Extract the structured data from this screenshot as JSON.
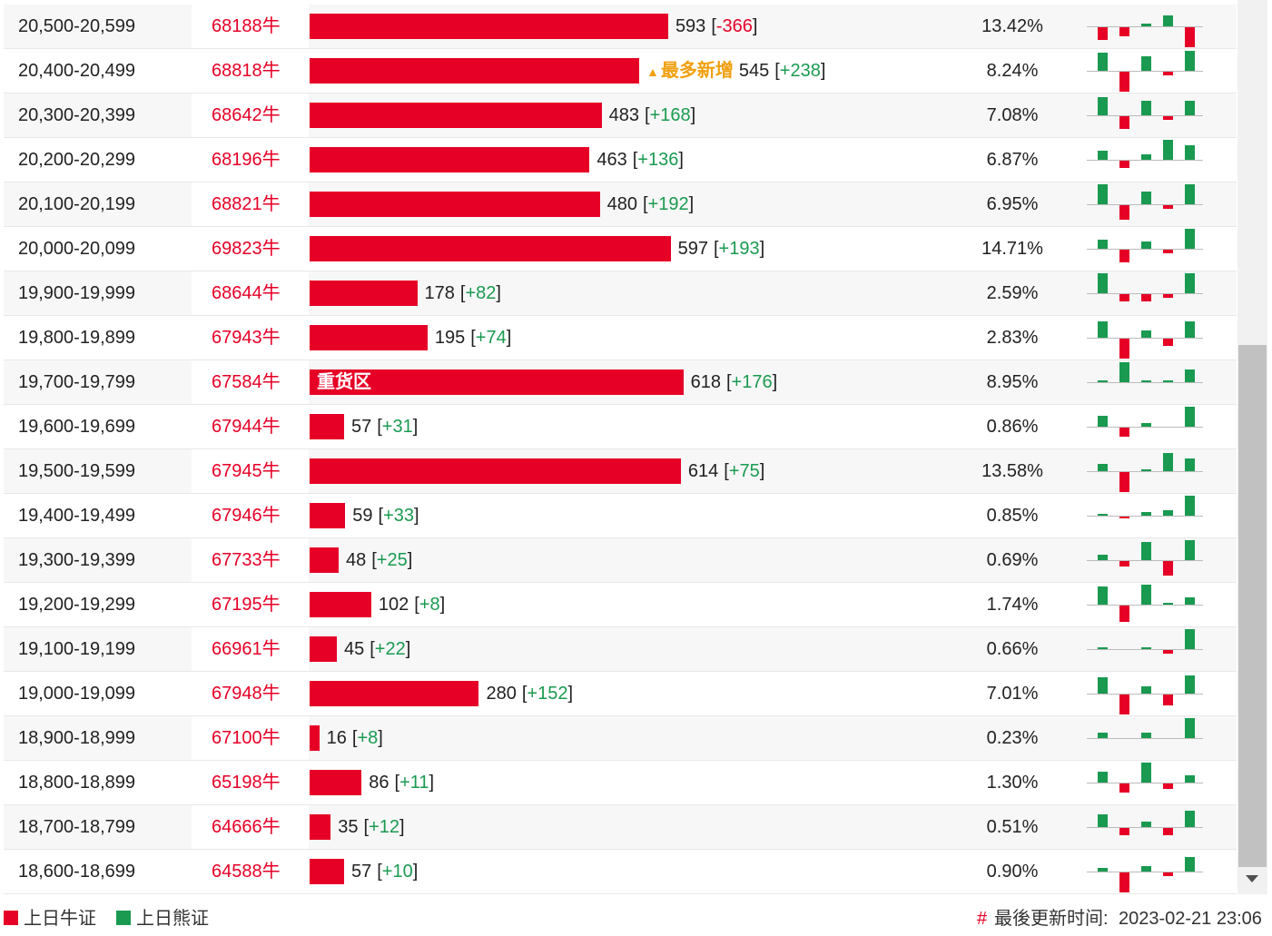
{
  "table": {
    "bracket_open": "[",
    "bracket_close": "]",
    "bar_color": "#e60026",
    "up_color": "#1a9a50",
    "down_color": "#e60026",
    "rows": [
      {
        "range": "20,500-20,599",
        "code": "68188牛",
        "count": 593,
        "change": "-366",
        "pct": "13.42%",
        "trend": [
          -14,
          -10,
          3,
          12,
          -22
        ]
      },
      {
        "range": "20,400-20,499",
        "code": "68818牛",
        "count": 545,
        "change": "+238",
        "pct": "8.24%",
        "note": "最多新增",
        "trend": [
          20,
          -22,
          16,
          -4,
          22
        ]
      },
      {
        "range": "20,300-20,399",
        "code": "68642牛",
        "count": 483,
        "change": "+168",
        "pct": "7.08%",
        "trend": [
          20,
          -14,
          16,
          -4,
          16
        ]
      },
      {
        "range": "20,200-20,299",
        "code": "68196牛",
        "count": 463,
        "change": "+136",
        "pct": "6.87%",
        "trend": [
          10,
          -8,
          6,
          22,
          16
        ]
      },
      {
        "range": "20,100-20,199",
        "code": "68821牛",
        "count": 480,
        "change": "+192",
        "pct": "6.95%",
        "trend": [
          22,
          -16,
          14,
          -4,
          22
        ]
      },
      {
        "range": "20,000-20,099",
        "code": "69823牛",
        "count": 597,
        "change": "+193",
        "pct": "14.71%",
        "trend": [
          10,
          -14,
          8,
          -4,
          22
        ]
      },
      {
        "range": "19,900-19,999",
        "code": "68644牛",
        "count": 178,
        "change": "+82",
        "pct": "2.59%",
        "trend": [
          22,
          -8,
          -8,
          -4,
          22
        ]
      },
      {
        "range": "19,800-19,899",
        "code": "67943牛",
        "count": 195,
        "change": "+74",
        "pct": "2.83%",
        "trend": [
          18,
          -22,
          8,
          -8,
          18
        ]
      },
      {
        "range": "19,700-19,799",
        "code": "67584牛",
        "count": 618,
        "change": "+176",
        "pct": "8.95%",
        "tag": "重货区",
        "trend": [
          2,
          22,
          2,
          2,
          14
        ]
      },
      {
        "range": "19,600-19,699",
        "code": "67944牛",
        "count": 57,
        "change": "+31",
        "pct": "0.86%",
        "trend": [
          12,
          -10,
          4,
          0,
          22
        ]
      },
      {
        "range": "19,500-19,599",
        "code": "67945牛",
        "count": 614,
        "change": "+75",
        "pct": "13.58%",
        "trend": [
          8,
          -22,
          2,
          20,
          14
        ]
      },
      {
        "range": "19,400-19,499",
        "code": "67946牛",
        "count": 59,
        "change": "+33",
        "pct": "0.85%",
        "trend": [
          2,
          -2,
          4,
          6,
          22
        ]
      },
      {
        "range": "19,300-19,399",
        "code": "67733牛",
        "count": 48,
        "change": "+25",
        "pct": "0.69%",
        "trend": [
          6,
          -6,
          20,
          -16,
          22
        ]
      },
      {
        "range": "19,200-19,299",
        "code": "67195牛",
        "count": 102,
        "change": "+8",
        "pct": "1.74%",
        "trend": [
          20,
          -18,
          22,
          2,
          8
        ]
      },
      {
        "range": "19,100-19,199",
        "code": "66961牛",
        "count": 45,
        "change": "+22",
        "pct": "0.66%",
        "trend": [
          2,
          0,
          2,
          -4,
          22
        ]
      },
      {
        "range": "19,000-19,099",
        "code": "67948牛",
        "count": 280,
        "change": "+152",
        "pct": "7.01%",
        "trend": [
          18,
          -22,
          8,
          -12,
          20
        ]
      },
      {
        "range": "18,900-18,999",
        "code": "67100牛",
        "count": 16,
        "change": "+8",
        "pct": "0.23%",
        "trend": [
          6,
          0,
          6,
          0,
          22
        ]
      },
      {
        "range": "18,800-18,899",
        "code": "65198牛",
        "count": 86,
        "change": "+11",
        "pct": "1.30%",
        "trend": [
          12,
          -10,
          22,
          -6,
          8
        ]
      },
      {
        "range": "18,700-18,799",
        "code": "64666牛",
        "count": 35,
        "change": "+12",
        "pct": "0.51%",
        "trend": [
          14,
          -8,
          6,
          -8,
          18
        ]
      },
      {
        "range": "18,600-18,699",
        "code": "64588牛",
        "count": 57,
        "change": "+10",
        "pct": "0.90%",
        "trend": [
          4,
          -22,
          6,
          -4,
          16
        ]
      }
    ]
  },
  "footer": {
    "legend": [
      {
        "label": "上日牛证",
        "color": "#e60026"
      },
      {
        "label": "上日熊证",
        "color": "#1a9a50"
      }
    ],
    "update_label": "最後更新时间:",
    "update_time": "2023-02-21 23:06"
  }
}
